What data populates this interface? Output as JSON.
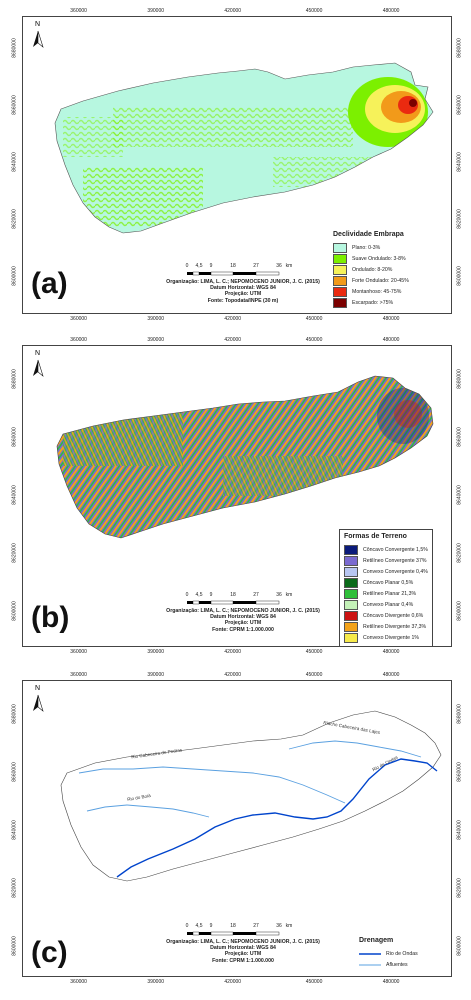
{
  "map_frame": {
    "x_ticks": [
      "360000",
      "390000",
      "420000",
      "450000",
      "480000"
    ],
    "y_ticks": [
      "8680000",
      "8660000",
      "8640000",
      "8620000",
      "8600000"
    ]
  },
  "panels": [
    {
      "label": "(a)",
      "legend_title": "Declividade Embrapa",
      "legend_items": [
        {
          "label": "Plano: 0-3%",
          "color": "#b7f7e0"
        },
        {
          "label": "Suave Ondulado: 3-8%",
          "color": "#7cf000"
        },
        {
          "label": "Ondulado: 8-20%",
          "color": "#f6f25a"
        },
        {
          "label": "Forte Ondulado: 20-45%",
          "color": "#f29a1a"
        },
        {
          "label": "Montanhoso: 45-75%",
          "color": "#ea2a10"
        },
        {
          "label": "Escarpado: >75%",
          "color": "#7b0000"
        }
      ],
      "credits": [
        "Organização: LIMA, L. C.; NEPOMOCENO JUNIOR, J. C. (2015)",
        "Datum Horizontal: WGS 84",
        "Projeção: UTM",
        "Fonte: Topodata/INPE (30 m)"
      ]
    },
    {
      "label": "(b)",
      "legend_title": "Formas de Terreno",
      "legend_items": [
        {
          "label": "Côncavo Convergente 1,5%",
          "color": "#0a1a7a"
        },
        {
          "label": "Retilíneo Convergente 37%",
          "color": "#7a6ad0"
        },
        {
          "label": "Convexo Convergente 0,4%",
          "color": "#b8c6f2"
        },
        {
          "label": "Côncavo Planar 0,5%",
          "color": "#0b6b1a"
        },
        {
          "label": "Retilíneo Planar 21,3%",
          "color": "#2fbf3a"
        },
        {
          "label": "Convexo Planar 0,4%",
          "color": "#c4f1b8"
        },
        {
          "label": "Côncavo Divergente 0,6%",
          "color": "#cc1212"
        },
        {
          "label": "Retilíneo Divergente 37,3%",
          "color": "#f2a21a"
        },
        {
          "label": "Convexo Divergente 1%",
          "color": "#f7ea4a"
        }
      ],
      "credits": [
        "Organização: LIMA, L. C.; NEPOMOCENO JUNIOR, J. C. (2015)",
        "Datum Horizontal: WGS 84",
        "Projeção: UTM",
        "Fonte: CPRM 1:1.000.000"
      ]
    },
    {
      "label": "(c)",
      "legend_title": "Drenagem",
      "legend_items": [
        {
          "label": "Rio de Ondas",
          "color": "#0044cc"
        },
        {
          "label": "Afluentes",
          "color": "#5aa0e0"
        }
      ],
      "river_labels": [
        "Rio Cabeceira de Pedras",
        "Riacho Cabeceira das Lajes",
        "Rio de Ondas",
        "Rio do Boià"
      ],
      "credits": [
        "Organização: LIMA, L. C.; NEPOMOCENO JUNIOR, J. C. (2015)",
        "Datum Horizontal: WGS 84",
        "Projeção: UTM",
        "Fonte: CPRM 1:1.000.000"
      ]
    }
  ],
  "scale_bar": {
    "ticks": [
      "0",
      "4,5",
      "9",
      "18",
      "27",
      "36"
    ],
    "unit": "km"
  },
  "north_label": "N"
}
